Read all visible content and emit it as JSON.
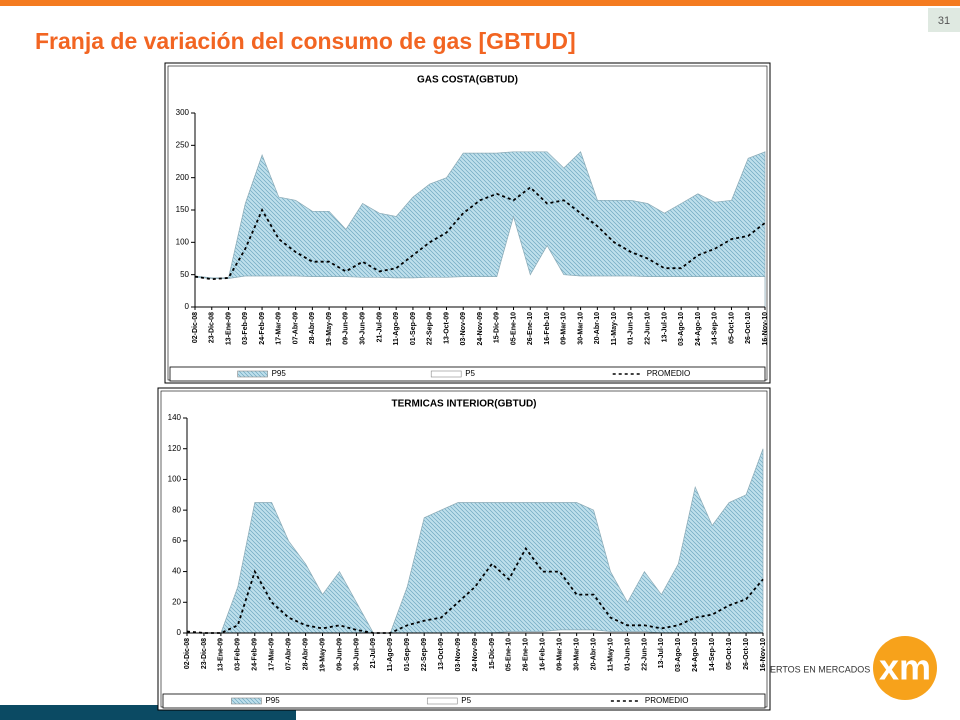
{
  "slide": {
    "title": "Franja de variación del consumo de gas [GBTUD]",
    "page_number": "31",
    "logo_tagline": "EXPERTOS EN MERCADOS",
    "logo_text": "xm"
  },
  "chart_data": [
    {
      "type": "area",
      "title": "GAS COSTA(GBTUD)",
      "categories": [
        "02-Dic-08",
        "23-Dic-08",
        "13-Ene-09",
        "03-Feb-09",
        "24-Feb-09",
        "17-Mar-09",
        "07-Abr-09",
        "28-Abr-09",
        "19-May-09",
        "09-Jun-09",
        "30-Jun-09",
        "21-Jul-09",
        "11-Ago-09",
        "01-Sep-09",
        "22-Sep-09",
        "13-Oct-09",
        "03-Nov-09",
        "24-Nov-09",
        "15-Dic-09",
        "05-Ene-10",
        "26-Ene-10",
        "16-Feb-10",
        "09-Mar-10",
        "30-Mar-10",
        "20-Abr-10",
        "11-May-10",
        "01-Jun-10",
        "22-Jun-10",
        "13-Jul-10",
        "03-Ago-10",
        "24-Ago-10",
        "14-Sep-10",
        "05-Oct-10",
        "26-Oct-10",
        "16-Nov-10"
      ],
      "series": [
        {
          "name": "P95",
          "style": "hatched-area",
          "color": "#bfe0ec",
          "values": [
            48,
            45,
            45,
            160,
            235,
            170,
            165,
            148,
            148,
            120,
            160,
            145,
            140,
            170,
            190,
            200,
            238,
            238,
            238,
            240,
            240,
            240,
            215,
            240,
            165,
            165,
            165,
            160,
            145,
            160,
            175,
            162,
            165,
            230,
            240
          ]
        },
        {
          "name": "P5",
          "style": "area",
          "color": "#ffffff",
          "values": [
            46,
            44,
            44,
            48,
            48,
            48,
            48,
            47,
            47,
            47,
            46,
            46,
            45,
            45,
            46,
            46,
            47,
            47,
            47,
            140,
            50,
            95,
            50,
            48,
            48,
            48,
            48,
            47,
            47,
            47,
            47,
            47,
            47,
            47,
            47
          ]
        },
        {
          "name": "PROMEDIO",
          "style": "dashed-line",
          "color": "#000000",
          "values": [
            47,
            43,
            45,
            90,
            150,
            105,
            85,
            70,
            70,
            55,
            70,
            55,
            60,
            80,
            100,
            115,
            145,
            165,
            175,
            165,
            185,
            160,
            165,
            145,
            125,
            100,
            85,
            75,
            60,
            60,
            80,
            90,
            105,
            110,
            130
          ]
        }
      ],
      "ylim": [
        0,
        300
      ],
      "yticks": [
        0,
        50,
        100,
        150,
        200,
        250,
        300
      ],
      "grid": false,
      "legend": "bottom"
    },
    {
      "type": "area",
      "title": "TERMICAS INTERIOR(GBTUD)",
      "categories": [
        "02-Dic-08",
        "23-Dic-08",
        "13-Ene-09",
        "03-Feb-09",
        "24-Feb-09",
        "17-Mar-09",
        "07-Abr-09",
        "28-Abr-09",
        "19-May-09",
        "09-Jun-09",
        "30-Jun-09",
        "21-Jul-09",
        "11-Ago-09",
        "01-Sep-09",
        "22-Sep-09",
        "13-Oct-09",
        "03-Nov-09",
        "24-Nov-09",
        "15-Dic-09",
        "05-Ene-10",
        "26-Ene-10",
        "16-Feb-10",
        "09-Mar-10",
        "30-Mar-10",
        "20-Abr-10",
        "11-May-10",
        "01-Jun-10",
        "22-Jun-10",
        "13-Jul-10",
        "03-Ago-10",
        "24-Ago-10",
        "14-Sep-10",
        "05-Oct-10",
        "26-Oct-10",
        "16-Nov-10"
      ],
      "series": [
        {
          "name": "P95",
          "style": "hatched-area",
          "color": "#bfe0ec",
          "values": [
            0,
            0,
            0,
            30,
            85,
            85,
            60,
            45,
            25,
            40,
            20,
            0,
            0,
            30,
            75,
            80,
            85,
            85,
            85,
            85,
            85,
            85,
            85,
            85,
            80,
            40,
            20,
            40,
            25,
            45,
            95,
            70,
            85,
            90,
            120
          ]
        },
        {
          "name": "P5",
          "style": "area",
          "color": "#ffffff",
          "values": [
            0,
            0,
            0,
            0,
            0,
            0,
            0,
            0,
            0,
            0,
            0,
            0,
            0,
            0,
            0,
            0,
            0,
            0,
            0,
            1,
            1,
            1,
            2,
            2,
            2,
            1,
            1,
            1,
            0,
            0,
            0,
            0,
            0,
            0,
            0
          ]
        },
        {
          "name": "PROMEDIO",
          "style": "dashed-line",
          "color": "#000000",
          "values": [
            1,
            0,
            0,
            5,
            40,
            20,
            10,
            5,
            3,
            5,
            2,
            0,
            0,
            5,
            8,
            10,
            20,
            30,
            45,
            35,
            55,
            40,
            40,
            25,
            25,
            10,
            5,
            5,
            3,
            5,
            10,
            12,
            18,
            22,
            35
          ]
        }
      ],
      "ylim": [
        0,
        140
      ],
      "yticks": [
        0,
        20,
        40,
        60,
        80,
        100,
        120,
        140
      ],
      "grid": false,
      "legend": "bottom"
    }
  ]
}
